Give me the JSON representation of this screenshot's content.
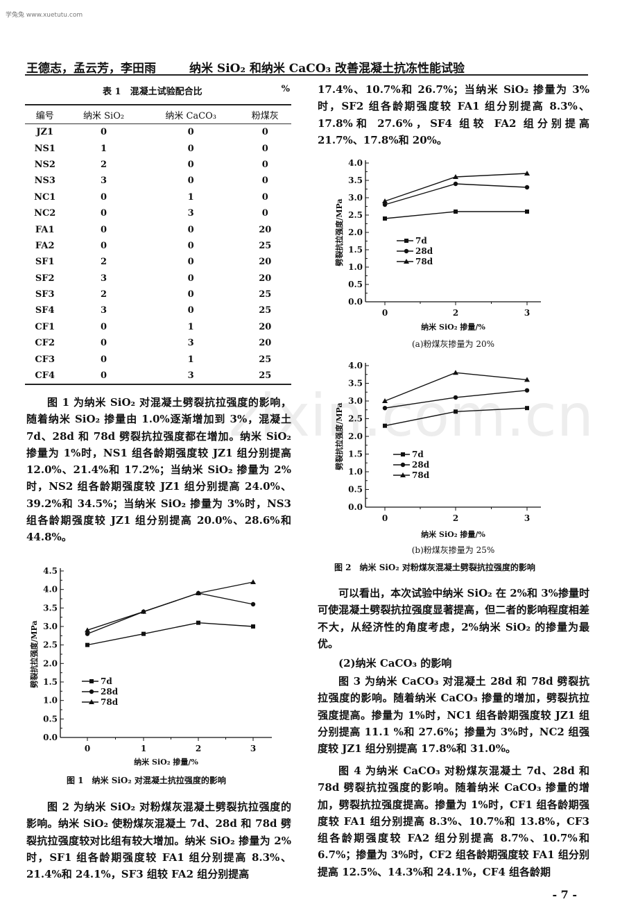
{
  "site_mark": "学兔兔 www.xuetutu.com",
  "watermark": "zixin.com.cn",
  "running_head": {
    "authors": "王德志，孟云芳，李田雨",
    "title": "纳米 SiO₂ 和纳米 CaCO₃ 改善混凝土抗冻性能试验"
  },
  "table1": {
    "caption": "表 1　混凝土试验配合比",
    "unit": "%",
    "headers": [
      "编号",
      "纳米 SiO₂",
      "纳米 CaCO₃",
      "粉煤灰"
    ],
    "rows": [
      [
        "JZ1",
        "0",
        "0",
        "0"
      ],
      [
        "NS1",
        "1",
        "0",
        "0"
      ],
      [
        "NS2",
        "2",
        "0",
        "0"
      ],
      [
        "NS3",
        "3",
        "0",
        "0"
      ],
      [
        "NC1",
        "0",
        "1",
        "0"
      ],
      [
        "NC2",
        "0",
        "3",
        "0"
      ],
      [
        "FA1",
        "0",
        "0",
        "20"
      ],
      [
        "FA2",
        "0",
        "0",
        "25"
      ],
      [
        "SF1",
        "2",
        "0",
        "20"
      ],
      [
        "SF2",
        "3",
        "0",
        "20"
      ],
      [
        "SF3",
        "2",
        "0",
        "25"
      ],
      [
        "SF4",
        "3",
        "0",
        "25"
      ],
      [
        "CF1",
        "0",
        "1",
        "20"
      ],
      [
        "CF2",
        "0",
        "3",
        "20"
      ],
      [
        "CF3",
        "0",
        "1",
        "25"
      ],
      [
        "CF4",
        "0",
        "3",
        "25"
      ]
    ]
  },
  "left_paras": [
    "图 1 为纳米 SiO₂ 对混凝土劈裂抗拉强度的影响，随着纳米 SiO₂ 掺量由 1.0%逐渐增加到 3%，混凝土 7d、28d 和 78d 劈裂抗拉强度都在增加。纳米 SiO₂ 掺量为 1%时，NS1 组各龄期强度较 JZ1 组分别提高 12.0%、21.4%和 17.2%；当纳米 SiO₂ 掺量为 2%时，NS2 组各龄期强度较 JZ1 组分别提高 24.0%、39.2%和 34.5%；当纳米 SiO₂ 掺量为 3%时，NS3 组各龄期强度较 JZ1 组分别提高 20.0%、28.6%和 44.8%。",
    "图 2 为纳米 SiO₂ 对粉煤灰混凝土劈裂抗拉强度的影响。纳米 SiO₂ 使粉煤灰混凝土 7d、28d 和 78d 劈裂抗拉强度较对比组有较大增加。纳米 SiO₂ 掺量为 2%时，SF1 组各龄期强度较 FA1 组分别提高 8.3%、21.4%和 24.1%，SF3 组较 FA2 组分别提高"
  ],
  "right_paras": [
    "17.4%、10.7%和 26.7%；当纳米 SiO₂ 掺量为 3%时，SF2 组各龄期强度较 FA1 组分别提高 8.3%、17.8%和 27.6%，SF4 组较 FA2 组分别提高 21.7%、17.8%和 20%。",
    "可以看出，本次试验中纳米 SiO₂ 在 2%和 3%掺量时可使混凝土劈裂抗拉强度显著提高，但二者的影响程度相差不大，从经济性的角度考虑，2%纳米 SiO₂ 的掺量为最优。",
    "(2)纳米 CaCO₃ 的影响",
    "图 3 为纳米 CaCO₃ 对混凝土 28d 和 78d 劈裂抗拉强度的影响。随着纳米 CaCO₃ 掺量的增加，劈裂抗拉强度提高。掺量为 1%时，NC1 组各龄期强度较 JZ1 组分别提高 11.1 %和 27.6%；掺量为 3%时，NC2 组强度较 JZ1 组分别提高 17.8%和 31.0%。",
    "图 4 为纳米 CaCO₃ 对粉煤灰混凝土 7d、28d 和 78d 劈裂抗拉强度的影响。随着纳米 CaCO₃ 掺量的增加，劈裂抗拉强度提高。掺量为 1%时，CF1 组各龄期强度较 FA1 组分别提高 8.3%、10.7%和 13.8%，CF3 组各龄期强度较 FA2 组分别提高 8.7%、10.7%和 6.7%；掺量为 3%时，CF2 组各龄期强度较 FA1 组分别提高 12.5%、14.3%和 24.1%，CF4 组各龄期"
  ],
  "fig1_caption": "图 1　纳米 SiO₂ 对混凝土抗拉强度的影响",
  "fig2_caption": "图 2　纳米 SiO₂ 对粉煤灰混凝土劈裂抗拉强度的影响",
  "page_number": "- 7 -",
  "chart_data": [
    {
      "type": "line",
      "title": "",
      "xlabel": "纳米 SiO₂ 掺量/%",
      "ylabel": "劈裂抗拉强度/MPa",
      "categories": [
        "0",
        "1",
        "2",
        "3"
      ],
      "ylim": [
        0,
        4.5
      ],
      "yticks": [
        "0.0",
        "0.5",
        "1.0",
        "1.5",
        "2.0",
        "2.5",
        "3.0",
        "3.5",
        "4.0",
        "4.5"
      ],
      "legend": "center-left",
      "series": [
        {
          "name": "7d",
          "marker": "square",
          "values": [
            2.5,
            2.8,
            3.1,
            3.0
          ]
        },
        {
          "name": "28d",
          "marker": "circle",
          "values": [
            2.8,
            3.4,
            3.9,
            3.6
          ]
        },
        {
          "name": "78d",
          "marker": "triangle",
          "values": [
            2.9,
            3.4,
            3.9,
            4.2
          ]
        }
      ]
    },
    {
      "type": "line",
      "subcaption": "(a)粉煤灰掺量为 20%",
      "xlabel": "纳米 SiO₂ 掺量/%",
      "ylabel": "劈裂抗拉强度/MPa",
      "categories": [
        "0",
        "2",
        "3"
      ],
      "ylim": [
        0,
        4.0
      ],
      "yticks": [
        "0.0",
        "0.5",
        "1.0",
        "1.5",
        "2.0",
        "2.5",
        "3.0",
        "3.5",
        "4.0"
      ],
      "legend": "center-left",
      "series": [
        {
          "name": "7d",
          "marker": "square",
          "values": [
            2.4,
            2.6,
            2.6
          ]
        },
        {
          "name": "28d",
          "marker": "circle",
          "values": [
            2.8,
            3.4,
            3.3
          ]
        },
        {
          "name": "78d",
          "marker": "triangle",
          "values": [
            2.9,
            3.6,
            3.7
          ]
        }
      ]
    },
    {
      "type": "line",
      "subcaption": "(b)粉煤灰掺量为 25%",
      "xlabel": "纳米 SiO₂ 掺量/%",
      "ylabel": "劈裂抗拉强度/MPa",
      "categories": [
        "0",
        "2",
        "3"
      ],
      "ylim": [
        0,
        4.0
      ],
      "yticks": [
        "0.0",
        "0.5",
        "1.0",
        "1.5",
        "2.0",
        "2.5",
        "3.0",
        "3.5",
        "4.0"
      ],
      "legend": "center-left",
      "series": [
        {
          "name": "7d",
          "marker": "square",
          "values": [
            2.3,
            2.7,
            2.8
          ]
        },
        {
          "name": "28d",
          "marker": "circle",
          "values": [
            2.8,
            3.1,
            3.3
          ]
        },
        {
          "name": "78d",
          "marker": "triangle",
          "values": [
            3.0,
            3.8,
            3.6
          ]
        }
      ]
    }
  ]
}
